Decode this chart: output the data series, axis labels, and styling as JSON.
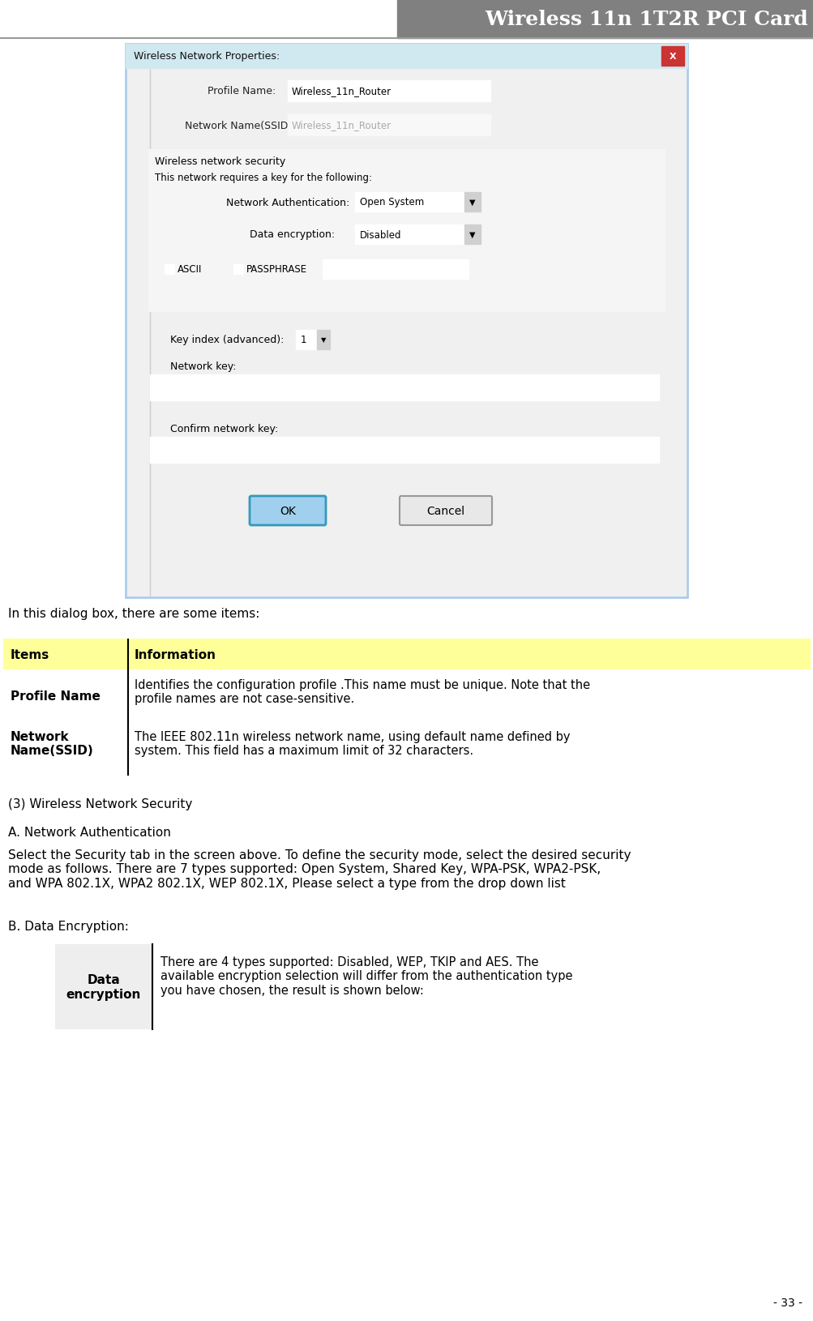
{
  "title": "Wireless 11n 1T2R PCI Card",
  "title_bg_right": "#808080",
  "title_bg_left": "#ffffff",
  "title_color": "#ffffff",
  "title_fontsize": 18,
  "page_bg": "#ffffff",
  "intro_text": "In this dialog box, there are some items:",
  "table1_header": [
    "Items",
    "Information"
  ],
  "table1_header_bg": "#ffff99",
  "table1_rows": [
    [
      "Profile Name",
      "Identifies the configuration profile .This name must be unique. Note that the\nprofile names are not case-sensitive."
    ],
    [
      "Network\nName(SSID)",
      "The IEEE 802.11n wireless network name, using default name defined by\nsystem. This field has a maximum limit of 32 characters."
    ]
  ],
  "section3_title": "(3) Wireless Network Security",
  "sectionA_title": "A. Network Authentication",
  "sectionA_body": "Select the Security tab in the screen above. To define the security mode, select the desired security\nmode as follows. There are 7 types supported: Open System, Shared Key, WPA-PSK, WPA2-PSK,\nand WPA 802.1X, WPA2 802.1X, WEP 802.1X, Please select a type from the drop down list",
  "sectionB_title": "B. Data Encryption:",
  "table2_col1_header": "Data\nencryption",
  "table2_col2_text": "There are 4 types supported: Disabled, WEP, TKIP and AES. The\navailable encryption selection will differ from the authentication type\nyou have chosen, the result is shown below:",
  "page_number": "- 33 -",
  "dialog_bg": "#f0f0f0",
  "dialog_border": "#aaccee",
  "dialog_title_text": "Wireless Network Properties:",
  "dialog_title_bg": "#d0e8f0",
  "dialog_close_bg": "#cc3333"
}
